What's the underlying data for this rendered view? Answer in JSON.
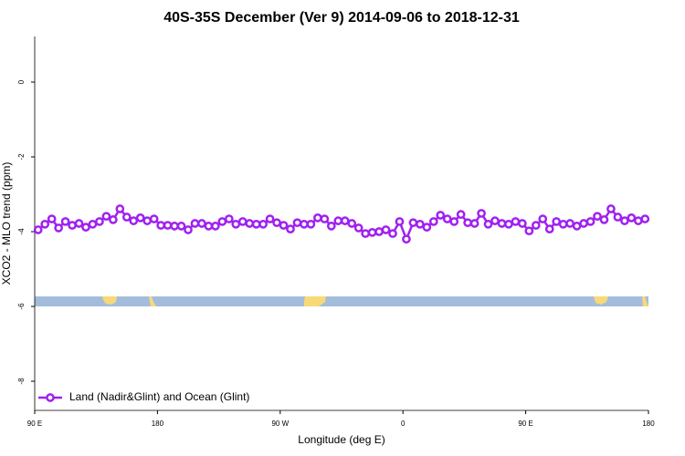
{
  "chart_data": {
    "type": "line",
    "title": "40S-35S December (Ver 9)   2014-09-06 to 2018-12-31",
    "x_label": "Longitude (deg E)",
    "y_label": "XCO2 - MLO trend (ppm)",
    "x": [
      92.5,
      97.5,
      102.5,
      107.5,
      112.5,
      117.5,
      122.5,
      127.5,
      132.5,
      137.5,
      142.5,
      147.5,
      152.5,
      157.5,
      162.5,
      167.5,
      172.5,
      177.5,
      182.5,
      187.5,
      192.5,
      197.5,
      202.5,
      207.5,
      212.5,
      217.5,
      222.5,
      227.5,
      232.5,
      237.5,
      242.5,
      247.5,
      252.5,
      257.5,
      262.5,
      267.5,
      272.5,
      277.5,
      282.5,
      287.5,
      292.5,
      297.5,
      302.5,
      307.5,
      312.5,
      317.5,
      322.5,
      327.5,
      332.5,
      337.5,
      342.5,
      347.5,
      352.5,
      357.5,
      362.5,
      367.5,
      372.5,
      377.5,
      382.5,
      387.5,
      392.5,
      397.5,
      402.5,
      407.5,
      412.5,
      417.5,
      422.5,
      427.5,
      432.5,
      437.5,
      442.5,
      447.5,
      452.5,
      457.5,
      462.5,
      467.5,
      472.5,
      477.5,
      482.5,
      487.5,
      492.5,
      497.5,
      502.5,
      507.5,
      512.5,
      517.5,
      522.5,
      527.5,
      532.5,
      537.5
    ],
    "series": [
      {
        "name": "Land (Nadir&Glint) and Ocean (Glint)",
        "color": "#a020f0",
        "values": [
          -3.95,
          -3.8,
          -3.66,
          -3.9,
          -3.73,
          -3.83,
          -3.78,
          -3.88,
          -3.8,
          -3.73,
          -3.59,
          -3.68,
          -3.39,
          -3.61,
          -3.71,
          -3.63,
          -3.71,
          -3.66,
          -3.83,
          -3.83,
          -3.85,
          -3.85,
          -3.95,
          -3.78,
          -3.78,
          -3.85,
          -3.85,
          -3.73,
          -3.66,
          -3.8,
          -3.73,
          -3.78,
          -3.8,
          -3.8,
          -3.66,
          -3.76,
          -3.83,
          -3.93,
          -3.76,
          -3.8,
          -3.8,
          -3.63,
          -3.66,
          -3.85,
          -3.71,
          -3.71,
          -3.78,
          -3.9,
          -4.05,
          -4.02,
          -4.0,
          -3.95,
          -4.05,
          -3.73,
          -4.2,
          -3.76,
          -3.8,
          -3.88,
          -3.73,
          -3.56,
          -3.66,
          -3.73,
          -3.54,
          -3.76,
          -3.78,
          -3.51,
          -3.8,
          -3.71,
          -3.78,
          -3.8,
          -3.73,
          -3.78,
          -3.98,
          -3.83,
          -3.66,
          -3.93,
          -3.73,
          -3.8,
          -3.78,
          -3.85,
          -3.78,
          -3.73,
          -3.59,
          -3.68,
          -3.39,
          -3.61,
          -3.71,
          -3.63,
          -3.71,
          -3.66
        ]
      }
    ],
    "xlim": [
      90,
      540
    ],
    "xticks": [
      {
        "value": 90,
        "label": "90 E"
      },
      180,
      {
        "value": 270,
        "label": "90 W"
      },
      {
        "value": 360,
        "label": "0"
      },
      {
        "value": 450,
        "label": "90 E"
      },
      {
        "value": 540,
        "label": "180"
      }
    ],
    "ylim": [
      -8.78,
      1.22
    ],
    "yticks": [
      0,
      -2,
      -4,
      -6,
      -8
    ],
    "legend": "bottom-left"
  }
}
